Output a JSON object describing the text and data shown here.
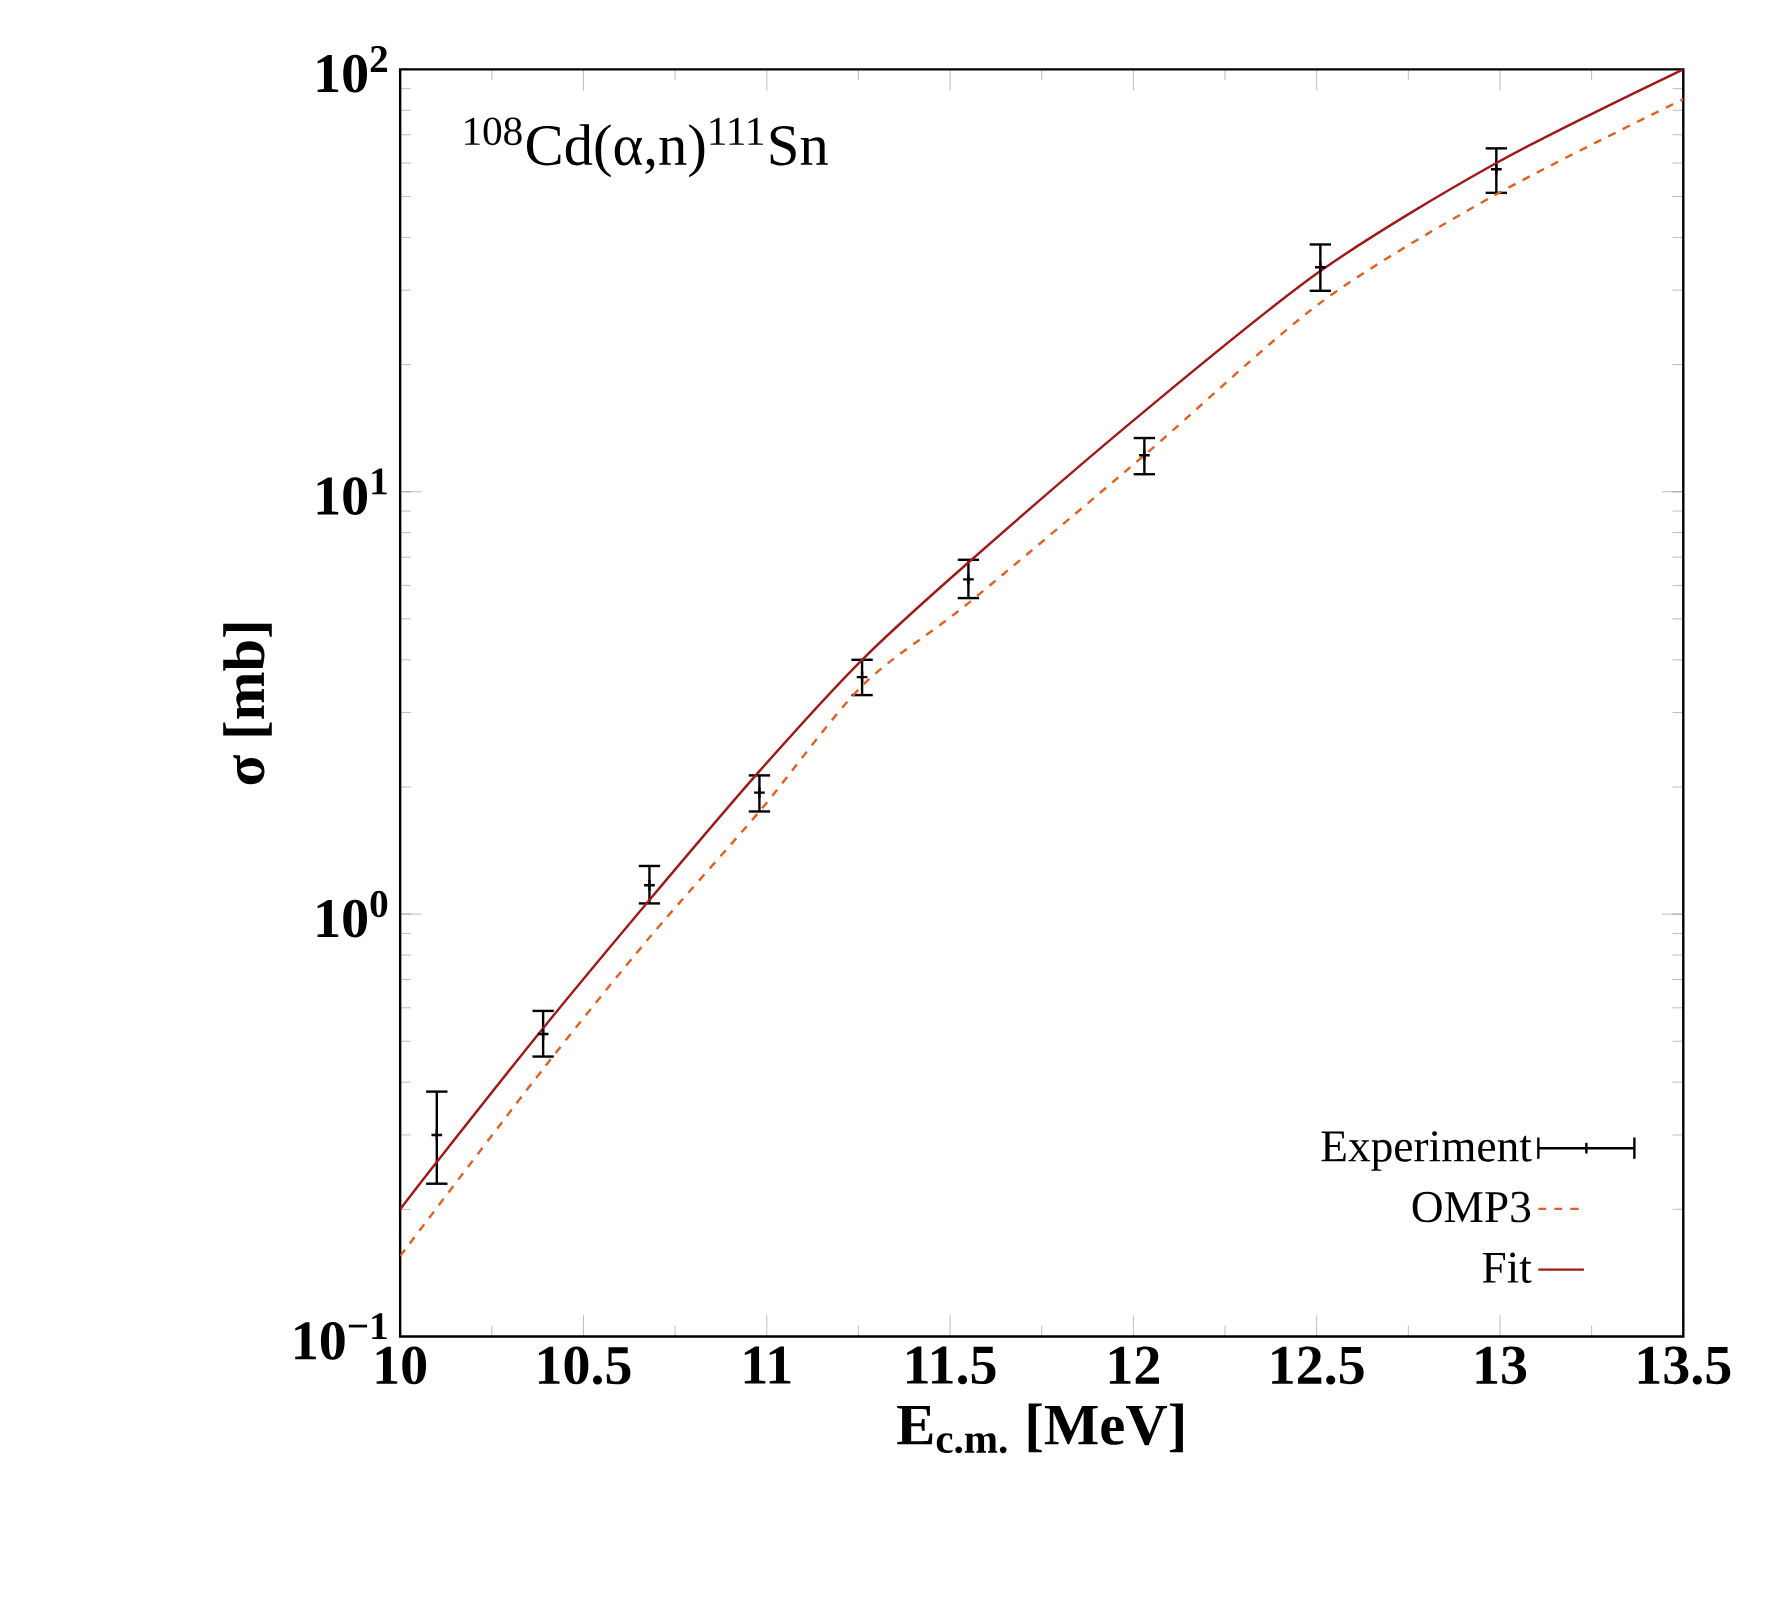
{
  "chart_data": {
    "type": "line",
    "xlabel": "**E$_{c.m.}$ [MeV]**",
    "ylabel": "**σ [mb]**",
    "annotations": [
      "$^{108}$Cd(α,n)$^{111}$Sn"
    ],
    "log": "y",
    "xlim": [
      10,
      13.5
    ],
    "ylim": [
      0.1,
      100
    ],
    "xticks": [
      10,
      10.5,
      11,
      11.5,
      12,
      12.5,
      13,
      13.5
    ],
    "yticks": [
      {
        "value": 0.1,
        "label": "10$^{−1}$"
      },
      {
        "value": 1,
        "label": "10$^{0}$"
      },
      {
        "value": 10,
        "label": "10$^{1}$"
      },
      {
        "value": 100,
        "label": "10$^{2}$"
      }
    ],
    "legend": "bottom right",
    "grid": false,
    "series": [
      {
        "name": "Experiment",
        "type": "scatter",
        "marker": "cross",
        "color": "#000000",
        "x": [
          10.1,
          10.39,
          10.68,
          10.98,
          11.26,
          11.55,
          12.03,
          12.51,
          12.99
        ],
        "values": [
          0.3,
          0.52,
          1.17,
          1.94,
          3.64,
          6.2,
          12.2,
          34,
          58
        ],
        "errors": [
          [
            0.23,
            0.38
          ],
          [
            0.46,
            0.59
          ],
          [
            1.06,
            1.3
          ],
          [
            1.75,
            2.13
          ],
          [
            3.3,
            4.0
          ],
          [
            5.6,
            6.9
          ],
          [
            11.0,
            13.4
          ],
          [
            29.9,
            38.5
          ],
          [
            51,
            65
          ]
        ]
      },
      {
        "name": "OMP3",
        "line_style": "dashed",
        "color": "#e06020",
        "x": [
          10,
          10.39,
          10.68,
          10.98,
          11.26,
          11.55,
          12.03,
          12.51,
          12.99,
          13.5
        ],
        "values": [
          0.155,
          0.43,
          0.88,
          1.75,
          3.47,
          5.45,
          12.2,
          28,
          50.6,
          85
        ]
      },
      {
        "name": "Fit",
        "line_style": "solid",
        "color": "#a01818",
        "x": [
          10,
          10.1,
          10.39,
          10.68,
          10.98,
          11.26,
          11.55,
          12.03,
          12.51,
          12.99,
          13.5
        ],
        "values": [
          0.2,
          0.259,
          0.537,
          1.08,
          2.18,
          4.0,
          6.8,
          15.5,
          33.3,
          60,
          100
        ]
      }
    ]
  }
}
